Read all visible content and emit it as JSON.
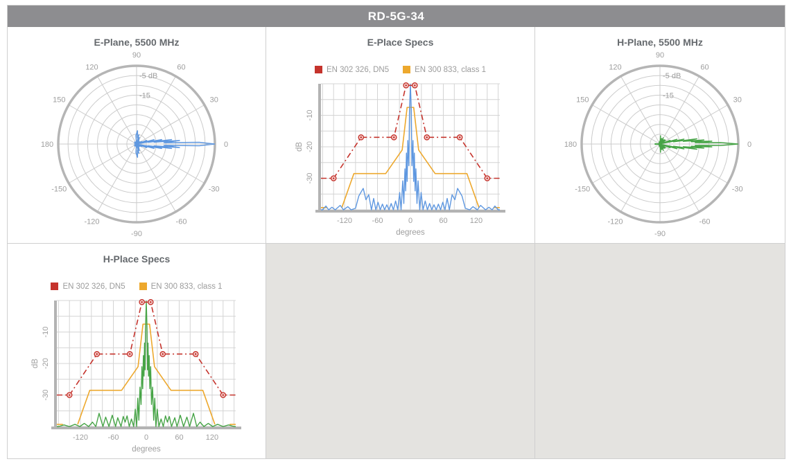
{
  "header": {
    "title": "RD-5G-34"
  },
  "panels": {
    "e_polar": {
      "title": "E-Plane, 5500 MHz"
    },
    "e_specs": {
      "title": "E-Place Specs"
    },
    "h_polar": {
      "title": "H-Plane, 5500 MHz"
    },
    "h_specs": {
      "title": "H-Place Specs"
    }
  },
  "legend": {
    "items": [
      {
        "label": "EN 302 326, DN5",
        "color_key": "red"
      },
      {
        "label": "EN 300 833, class 1",
        "color_key": "orange"
      }
    ]
  },
  "colors": {
    "blue": "#5e97e0",
    "green": "#47a447",
    "red": "#c5332c",
    "orange": "#eda82d",
    "marker_fill": "#f6d9d7",
    "grid": "#d4d4d4",
    "axis": "#b3b3b3",
    "ring": "#cbcbcb",
    "ring_outer": "#b5b5b5",
    "tick_text": "#9e9e9e",
    "title_text": "#65696d",
    "header_bg": "#8d8d90",
    "panel_border": "#cfcfcf",
    "empty_cell": "#e4e3e0"
  },
  "chart_data": {
    "patterns": {
      "e_plane": [
        [
          -180,
          -40
        ],
        [
          -170,
          -40
        ],
        [
          -160,
          -40
        ],
        [
          -154,
          -38.8
        ],
        [
          -149,
          -40
        ],
        [
          -143,
          -39.2
        ],
        [
          -137,
          -40
        ],
        [
          -128,
          -38.6
        ],
        [
          -122,
          -40
        ],
        [
          -114,
          -39
        ],
        [
          -108,
          -40
        ],
        [
          -100,
          -39.5
        ],
        [
          -94,
          -35.6
        ],
        [
          -86,
          -33.2
        ],
        [
          -81,
          -36.8
        ],
        [
          -76,
          -35.2
        ],
        [
          -71,
          -40
        ],
        [
          -67,
          -36.4
        ],
        [
          -63,
          -40
        ],
        [
          -59,
          -37.6
        ],
        [
          -55,
          -40
        ],
        [
          -51,
          -38.2
        ],
        [
          -47,
          -40
        ],
        [
          -43,
          -38.4
        ],
        [
          -39,
          -40
        ],
        [
          -35,
          -38
        ],
        [
          -31,
          -40
        ],
        [
          -27,
          -37.2
        ],
        [
          -23,
          -40
        ],
        [
          -19.5,
          -34.5
        ],
        [
          -17,
          -40
        ],
        [
          -14,
          -30.8
        ],
        [
          -12,
          -38
        ],
        [
          -10,
          -27
        ],
        [
          -8.6,
          -34
        ],
        [
          -7.2,
          -22
        ],
        [
          -5.9,
          -31
        ],
        [
          -4.7,
          -18
        ],
        [
          -2.8,
          -26
        ],
        [
          -1.6,
          -8
        ],
        [
          0,
          -0.2
        ],
        [
          1.6,
          -8
        ],
        [
          2.8,
          -26
        ],
        [
          4.7,
          -18
        ],
        [
          5.9,
          -31
        ],
        [
          7.2,
          -22
        ],
        [
          8.6,
          -34
        ],
        [
          10,
          -27
        ],
        [
          12,
          -38
        ],
        [
          14,
          -30.8
        ],
        [
          17,
          -40
        ],
        [
          19.5,
          -34.5
        ],
        [
          23,
          -40
        ],
        [
          27,
          -37.2
        ],
        [
          31,
          -40
        ],
        [
          35,
          -38
        ],
        [
          39,
          -40
        ],
        [
          43,
          -38.4
        ],
        [
          47,
          -40
        ],
        [
          51,
          -38.2
        ],
        [
          55,
          -40
        ],
        [
          59,
          -37.6
        ],
        [
          63,
          -40
        ],
        [
          67,
          -36.4
        ],
        [
          71,
          -40
        ],
        [
          76,
          -35.2
        ],
        [
          81,
          -36.8
        ],
        [
          86,
          -33.2
        ],
        [
          94,
          -35.6
        ],
        [
          100,
          -39.5
        ],
        [
          108,
          -40
        ],
        [
          114,
          -39
        ],
        [
          122,
          -40
        ],
        [
          128,
          -38.6
        ],
        [
          137,
          -40
        ],
        [
          143,
          -39.2
        ],
        [
          149,
          -40
        ],
        [
          154,
          -38.8
        ],
        [
          160,
          -40
        ],
        [
          170,
          -40
        ],
        [
          180,
          -40
        ]
      ],
      "h_plane": [
        [
          -180,
          -40
        ],
        [
          -176,
          -37.5
        ],
        [
          -172,
          -40
        ],
        [
          -160,
          -40
        ],
        [
          -150,
          -39.5
        ],
        [
          -140,
          -40
        ],
        [
          -130,
          -39.3
        ],
        [
          -121,
          -40
        ],
        [
          -113,
          -39
        ],
        [
          -105,
          -40
        ],
        [
          -98,
          -38.6
        ],
        [
          -92,
          -40
        ],
        [
          -86,
          -35.8
        ],
        [
          -79,
          -40
        ],
        [
          -74,
          -37
        ],
        [
          -68,
          -40
        ],
        [
          -62,
          -36.4
        ],
        [
          -56,
          -40
        ],
        [
          -52,
          -37.2
        ],
        [
          -46,
          -40
        ],
        [
          -42,
          -36.8
        ],
        [
          -38.5,
          -38.6
        ],
        [
          -35,
          -36.6
        ],
        [
          -31,
          -40
        ],
        [
          -27,
          -37.6
        ],
        [
          -23,
          -40
        ],
        [
          -20,
          -34.5
        ],
        [
          -17.5,
          -40
        ],
        [
          -15.5,
          -31
        ],
        [
          -13.5,
          -38
        ],
        [
          -11.5,
          -27.5
        ],
        [
          -9.5,
          -33
        ],
        [
          -8,
          -21
        ],
        [
          -6.5,
          -28
        ],
        [
          -5.3,
          -17.5
        ],
        [
          -4.1,
          -24
        ],
        [
          -3.2,
          -13.5
        ],
        [
          -2.2,
          -22
        ],
        [
          -1.4,
          -9
        ],
        [
          0,
          -0.2
        ],
        [
          1.4,
          -9
        ],
        [
          2.2,
          -22
        ],
        [
          3.2,
          -13.5
        ],
        [
          4.1,
          -24
        ],
        [
          5.3,
          -17.5
        ],
        [
          6.5,
          -28
        ],
        [
          8,
          -21
        ],
        [
          9.5,
          -33
        ],
        [
          11.5,
          -27.5
        ],
        [
          13.5,
          -38
        ],
        [
          15.5,
          -31
        ],
        [
          17.5,
          -40
        ],
        [
          20,
          -34.5
        ],
        [
          23,
          -40
        ],
        [
          27,
          -37.6
        ],
        [
          31,
          -40
        ],
        [
          35,
          -36.6
        ],
        [
          38.5,
          -38.6
        ],
        [
          42,
          -36.8
        ],
        [
          46,
          -40
        ],
        [
          52,
          -37.2
        ],
        [
          56,
          -40
        ],
        [
          62,
          -36.4
        ],
        [
          68,
          -40
        ],
        [
          74,
          -37
        ],
        [
          79,
          -40
        ],
        [
          86,
          -35.8
        ],
        [
          92,
          -40
        ],
        [
          98,
          -38.6
        ],
        [
          105,
          -40
        ],
        [
          113,
          -39
        ],
        [
          121,
          -40
        ],
        [
          130,
          -39.3
        ],
        [
          140,
          -40
        ],
        [
          150,
          -39.5
        ],
        [
          160,
          -40
        ],
        [
          172,
          -40
        ],
        [
          176,
          -37.5
        ],
        [
          180,
          -40
        ]
      ]
    },
    "masks": {
      "en302326_dn5": {
        "name": "EN 302 326, DN5",
        "points": [
          [
            -163,
            -30
          ],
          [
            -140,
            -30
          ],
          [
            -90,
            -17
          ],
          [
            -30,
            -17
          ],
          [
            -8,
            -0.5
          ],
          [
            8,
            -0.5
          ],
          [
            30,
            -17
          ],
          [
            90,
            -17
          ],
          [
            140,
            -30
          ],
          [
            163,
            -30
          ]
        ],
        "marker_points": [
          [
            -140,
            -30
          ],
          [
            -90,
            -17
          ],
          [
            -30,
            -17
          ],
          [
            -8,
            -0.5
          ],
          [
            8,
            -0.5
          ],
          [
            30,
            -17
          ],
          [
            90,
            -17
          ],
          [
            140,
            -30
          ]
        ]
      },
      "en300833_class1": {
        "name": "EN 300 833, class 1",
        "segments": [
          [
            [
              -163,
              -39.3
            ],
            [
              -152,
              -39.3
            ]
          ],
          [
            [
              -125,
              -39.3
            ],
            [
              -103,
              -28.5
            ],
            [
              -45,
              -28.5
            ],
            [
              -15,
              -21
            ],
            [
              -6,
              -7.5
            ],
            [
              6,
              -7.5
            ],
            [
              15,
              -21
            ],
            [
              45,
              -28.5
            ],
            [
              103,
              -28.5
            ],
            [
              125,
              -39.3
            ]
          ],
          [
            [
              152,
              -39.3
            ],
            [
              163,
              -39.3
            ]
          ]
        ]
      }
    },
    "charts": [
      {
        "type": "polar",
        "title": "E-Plane, 5500 MHz",
        "angle_ticks": [
          0,
          30,
          60,
          90,
          120,
          150,
          180,
          -150,
          -120,
          -90,
          -60,
          -30
        ],
        "ring_labels": [
          {
            "text": "-5 dB",
            "db": -5
          },
          {
            "text": "-15",
            "db": -15
          }
        ],
        "db_range": [
          0,
          -40
        ],
        "ring_step_db": 5,
        "pattern": "e_plane",
        "color_key": "blue"
      },
      {
        "type": "line",
        "title": "E-Place Specs",
        "xlabel": "degrees",
        "ylabel": "dB",
        "xlim": [
          -163,
          163
        ],
        "ylim": [
          -40,
          0
        ],
        "xticks": [
          -120,
          -60,
          0,
          60,
          120
        ],
        "yticks": [
          -10,
          -20,
          -30
        ],
        "x_grid_step": 20,
        "y_grid_step": 5,
        "pattern": "e_plane",
        "color_key": "blue",
        "masks": [
          "en302326_dn5",
          "en300833_class1"
        ]
      },
      {
        "type": "polar",
        "title": "H-Plane, 5500 MHz",
        "angle_ticks": [
          0,
          30,
          60,
          90,
          120,
          150,
          180,
          -150,
          -120,
          -90,
          -60,
          -30
        ],
        "ring_labels": [
          {
            "text": "-5 dB",
            "db": -5
          },
          {
            "text": "-15",
            "db": -15
          }
        ],
        "db_range": [
          0,
          -40
        ],
        "ring_step_db": 5,
        "pattern": "h_plane",
        "color_key": "green"
      },
      {
        "type": "line",
        "title": "H-Place Specs",
        "xlabel": "degrees",
        "ylabel": "dB",
        "xlim": [
          -163,
          163
        ],
        "ylim": [
          -40,
          0
        ],
        "xticks": [
          -120,
          -60,
          0,
          60,
          120
        ],
        "yticks": [
          -10,
          -20,
          -30
        ],
        "x_grid_step": 20,
        "y_grid_step": 5,
        "pattern": "h_plane",
        "color_key": "green",
        "masks": [
          "en302326_dn5",
          "en300833_class1"
        ]
      }
    ]
  }
}
